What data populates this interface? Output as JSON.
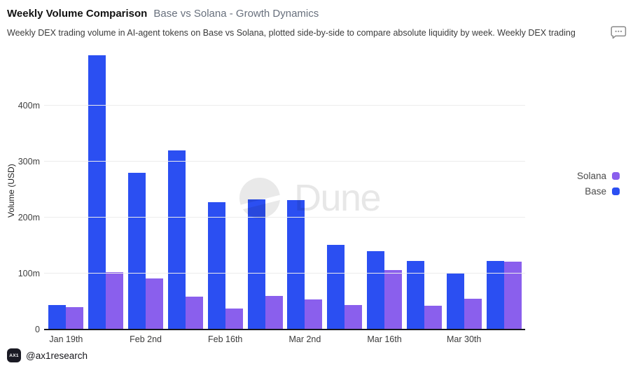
{
  "header": {
    "title": "Weekly Volume Comparison",
    "subtitle": "Base vs Solana - Growth Dynamics",
    "description": "Weekly DEX trading volume in AI-agent tokens on Base vs Solana, plotted side-by-side to compare absolute liquidity by week. Weekly DEX trading"
  },
  "chart_data": {
    "type": "bar",
    "title": "Weekly Volume Comparison - Base vs Solana - Growth Dynamics",
    "xlabel": "",
    "ylabel": "Volume (USD)",
    "unit": "millions of USD",
    "ylim": [
      0,
      500
    ],
    "grid": true,
    "y_ticks": [
      {
        "value": 0,
        "label": "0"
      },
      {
        "value": 100,
        "label": "100m"
      },
      {
        "value": 200,
        "label": "200m"
      },
      {
        "value": 300,
        "label": "300m"
      },
      {
        "value": 400,
        "label": "400m"
      }
    ],
    "categories": [
      "Jan 19th",
      "",
      "Feb 2nd",
      "",
      "Feb 16th",
      "",
      "Mar 2nd",
      "",
      "Mar 16th",
      "",
      "Mar 30th",
      ""
    ],
    "series": [
      {
        "name": "Base",
        "color": "#2b4ff2",
        "values": [
          44,
          490,
          280,
          320,
          227,
          233,
          231,
          151,
          140,
          122,
          100,
          122
        ]
      },
      {
        "name": "Solana",
        "color": "#8a5fed",
        "values": [
          40,
          103,
          91,
          59,
          38,
          60,
          54,
          44,
          106,
          42,
          55,
          121
        ]
      }
    ],
    "legend": {
      "position": "right",
      "entries": [
        {
          "label": "Solana",
          "color": "#8a5fed"
        },
        {
          "label": "Base",
          "color": "#2b4ff2"
        }
      ]
    }
  },
  "watermark": {
    "text": "Dune"
  },
  "footer": {
    "badge_label": "AX1",
    "handle": "@ax1research"
  }
}
